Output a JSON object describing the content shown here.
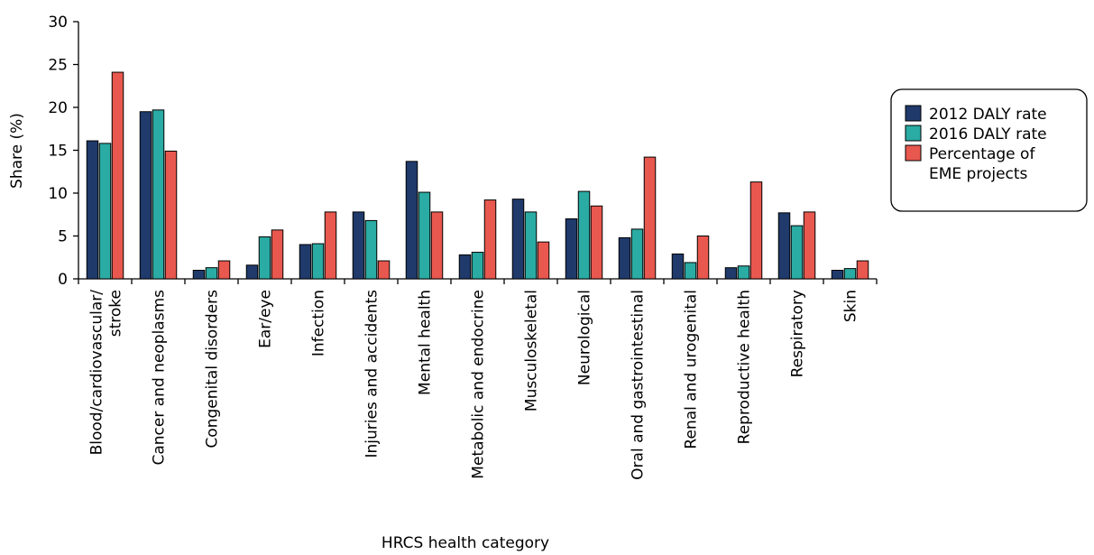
{
  "chart_data": {
    "type": "bar",
    "title": "",
    "xlabel": "HRCS health category",
    "ylabel": "Share (%)",
    "ylim": [
      0,
      30
    ],
    "yticks": [
      0,
      5,
      10,
      15,
      20,
      25,
      30
    ],
    "grid": false,
    "legend_position": "right",
    "categories": [
      "Blood/cardiovascular/ stroke",
      "Cancer and neoplasms",
      "Congenital disorders",
      "Ear/eye",
      "Infection",
      "Injuries and accidents",
      "Mental health",
      "Metabolic and endocrine",
      "Musculoskeletal",
      "Neurological",
      "Oral and gastrointestinal",
      "Renal and urogenital",
      "Reproductive health",
      "Respiratory",
      "Skin"
    ],
    "series": [
      {
        "name": "2012 DALY rate",
        "color": "#1f3a6b",
        "values": [
          16.1,
          19.5,
          1.0,
          1.6,
          4.0,
          7.8,
          13.7,
          2.8,
          9.3,
          7.0,
          4.8,
          2.9,
          1.3,
          7.7,
          1.0
        ]
      },
      {
        "name": "2016 DALY rate",
        "color": "#2aaba3",
        "values": [
          15.8,
          19.7,
          1.3,
          4.9,
          4.1,
          6.8,
          10.1,
          3.1,
          7.8,
          10.2,
          5.8,
          1.9,
          1.5,
          6.2,
          1.2
        ]
      },
      {
        "name": "Percentage of EME projects",
        "color": "#e8584e",
        "values": [
          24.1,
          14.9,
          2.1,
          5.7,
          7.8,
          2.1,
          7.8,
          9.2,
          4.3,
          8.5,
          14.2,
          5.0,
          11.3,
          7.8,
          2.1
        ]
      }
    ],
    "legend_lines": [
      [
        "2012 DALY rate"
      ],
      [
        "2016 DALY rate"
      ],
      [
        "Percentage of",
        "EME projects"
      ]
    ]
  }
}
